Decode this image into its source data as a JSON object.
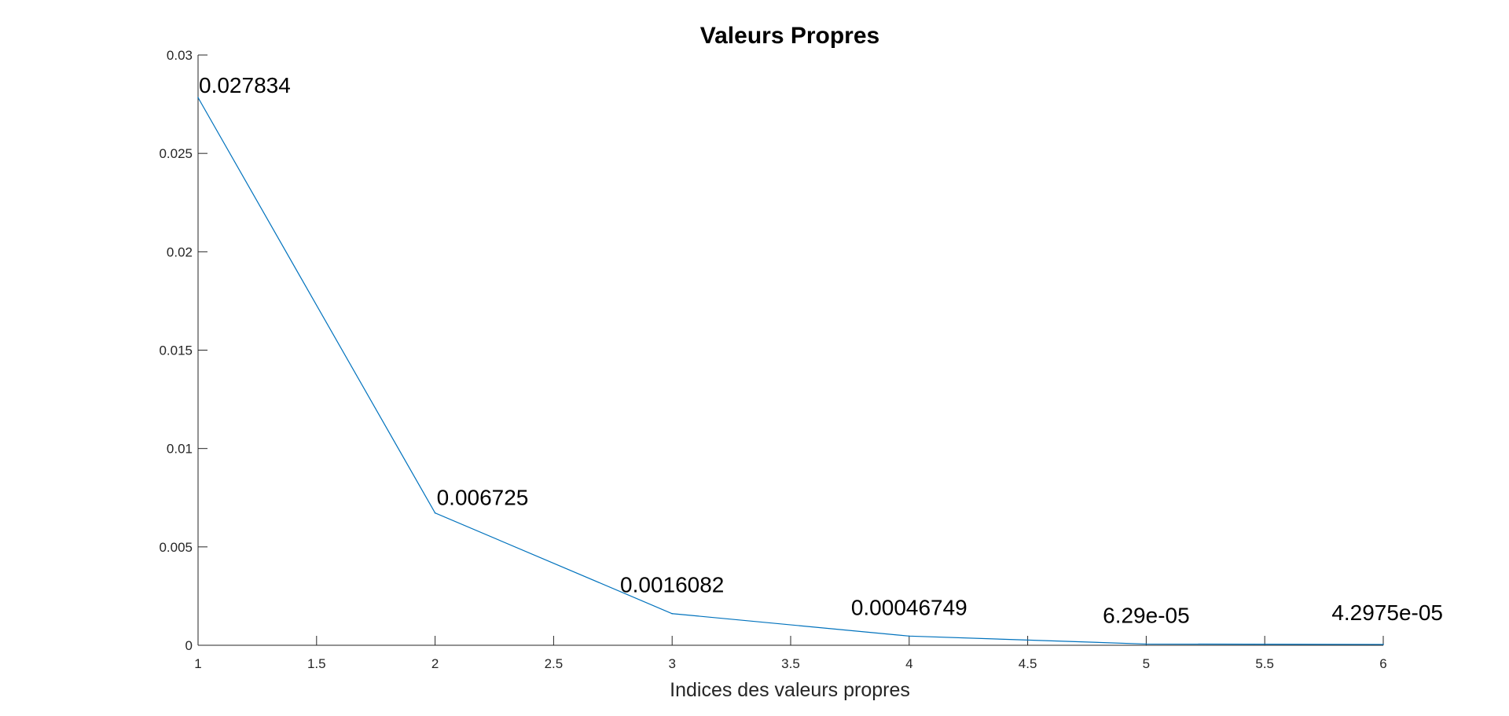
{
  "chart_data": {
    "type": "line",
    "title": "Valeurs Propres",
    "xlabel": "Indices des valeurs propres",
    "ylabel": "",
    "xlim": [
      1,
      6
    ],
    "ylim": [
      0,
      0.03
    ],
    "x_ticks": [
      "1",
      "1.5",
      "2",
      "2.5",
      "3",
      "3.5",
      "4",
      "4.5",
      "5",
      "5.5",
      "6"
    ],
    "y_ticks": [
      "0",
      "0.005",
      "0.01",
      "0.015",
      "0.02",
      "0.025",
      "0.03"
    ],
    "grid": false,
    "series": [
      {
        "color": "#0072BD",
        "x": [
          1,
          2,
          3,
          4,
          5,
          6
        ],
        "y": [
          0.027834,
          0.006725,
          0.0016082,
          0.00046749,
          6.29e-05,
          4.2975e-05
        ],
        "labels": [
          "0.027834",
          "0.006725",
          "0.0016082",
          "0.00046749",
          "6.29e-05",
          "4.2975e-05"
        ]
      }
    ]
  }
}
